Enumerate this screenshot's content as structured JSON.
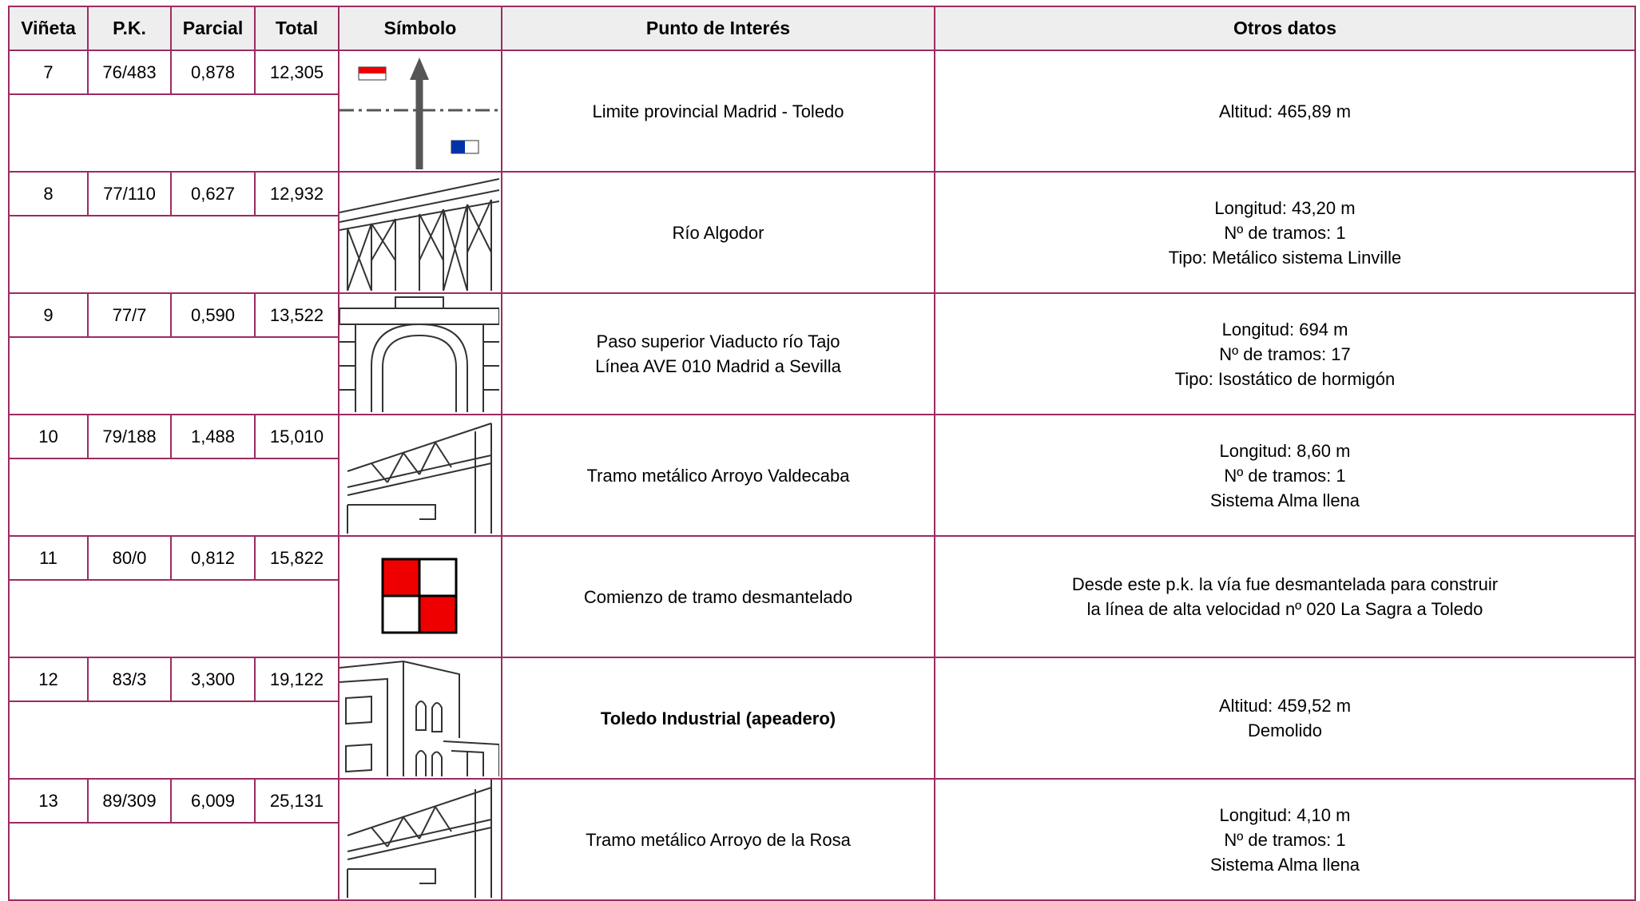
{
  "header": {
    "columns": [
      "Viñeta",
      "P.K.",
      "Parcial",
      "Total",
      "Símbolo",
      "Punto de Interés",
      "Otros datos"
    ]
  },
  "rows": [
    {
      "vineta": "7",
      "pk": "76/483",
      "parcial": "0,878",
      "total": "12,305",
      "punto": [
        "Limite provincial Madrid - Toledo"
      ],
      "otros": [
        "Altitud: 465,89 m"
      ]
    },
    {
      "vineta": "8",
      "pk": "77/110",
      "parcial": "0,627",
      "total": "12,932",
      "punto": [
        "Río Algodor"
      ],
      "otros": [
        "Longitud: 43,20 m",
        "Nº de tramos: 1",
        "Tipo: Metálico sistema Linville"
      ]
    },
    {
      "vineta": "9",
      "pk": "77/7",
      "parcial": "0,590",
      "total": "13,522",
      "punto": [
        "Paso superior Viaducto río Tajo",
        "Línea AVE 010 Madrid a Sevilla"
      ],
      "otros": [
        "Longitud: 694 m",
        "Nº de tramos: 17",
        "Tipo: Isostático de hormigón"
      ]
    },
    {
      "vineta": "10",
      "pk": "79/188",
      "parcial": "1,488",
      "total": "15,010",
      "punto": [
        "Tramo metálico Arroyo Valdecaba"
      ],
      "otros": [
        "Longitud: 8,60 m",
        "Nº de tramos: 1",
        "Sistema Alma llena"
      ]
    },
    {
      "vineta": "11",
      "pk": "80/0",
      "parcial": "0,812",
      "total": "15,822",
      "punto": [
        "Comienzo de tramo desmantelado"
      ],
      "otros": [
        "Desde este p.k. la vía fue desmantelada para construir",
        "la línea de alta velocidad nº 020 La Sagra a Toledo"
      ]
    },
    {
      "vineta": "12",
      "pk": "83/3",
      "parcial": "3,300",
      "total": "19,122",
      "punto": [
        "Toledo Industrial (apeadero)"
      ],
      "otros": [
        "Altitud: 459,52 m",
        "Demolido"
      ],
      "bold": true
    },
    {
      "vineta": "13",
      "pk": "89/309",
      "parcial": "6,009",
      "total": "25,131",
      "punto": [
        "Tramo metálico Arroyo de la Rosa"
      ],
      "otros": [
        "Longitud: 4,10 m",
        "Nº de tramos: 1",
        "Sistema Alma llena"
      ]
    }
  ]
}
